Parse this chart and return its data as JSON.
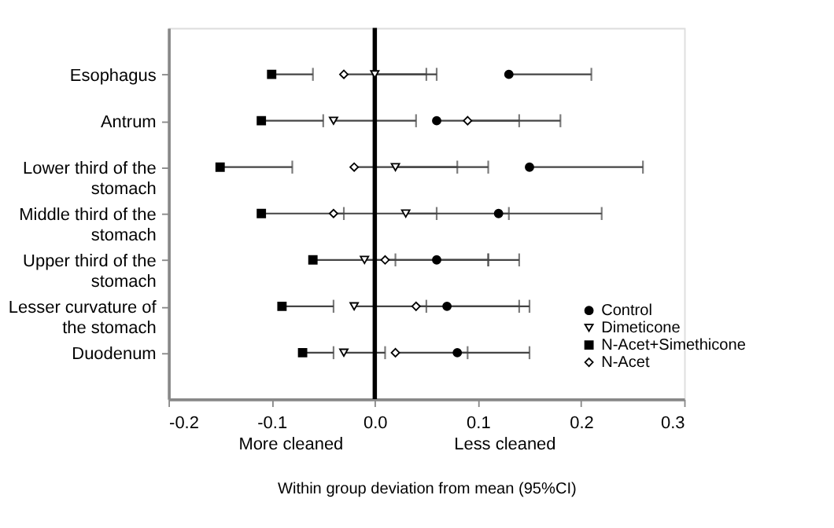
{
  "chart_data": {
    "type": "scatter",
    "orientation": "horizontal",
    "categories": [
      "Esophagus",
      "Antrum",
      "Lower third of the stomach",
      "Middle third of the stomach",
      "Upper third of the stomach",
      "Lesser curvature of the stomach",
      "Duodenum"
    ],
    "series": [
      {
        "name": "Control",
        "color": "#000000",
        "marker": "circle",
        "values": [
          0.13,
          0.06,
          0.15,
          0.12,
          0.06,
          0.07,
          0.08
        ],
        "errors": [
          [
            0.13,
            0.21
          ],
          [
            0.06,
            0.14
          ],
          [
            0.15,
            0.26
          ],
          [
            0.12,
            0.22
          ],
          [
            0.06,
            0.14
          ],
          [
            0.07,
            0.15
          ],
          [
            0.08,
            0.15
          ]
        ]
      },
      {
        "name": "Dimeticone",
        "color": "#000000",
        "marker": "triangle",
        "values": [
          0.0,
          -0.04,
          0.02,
          0.03,
          -0.01,
          -0.02,
          -0.03
        ],
        "errors": [
          [
            0.0,
            0.06
          ],
          [
            -0.04,
            0.04
          ],
          [
            0.02,
            0.11
          ],
          [
            0.03,
            0.13
          ],
          [
            -0.01,
            0.11
          ],
          [
            -0.02,
            0.05
          ],
          [
            -0.03,
            0.01
          ]
        ]
      },
      {
        "name": "N-Acet+Simethicone",
        "color": "#000000",
        "marker": "square",
        "values": [
          -0.1,
          -0.11,
          -0.15,
          -0.11,
          -0.06,
          -0.09,
          -0.07
        ],
        "errors": [
          [
            -0.1,
            -0.06
          ],
          [
            -0.11,
            -0.05
          ],
          [
            -0.15,
            -0.08
          ],
          [
            -0.11,
            -0.03
          ],
          [
            -0.06,
            0.02
          ],
          [
            -0.09,
            -0.04
          ],
          [
            -0.07,
            -0.04
          ]
        ]
      },
      {
        "name": "N-Acet",
        "color": "#000000",
        "marker": "diamond",
        "values": [
          -0.03,
          0.09,
          -0.02,
          -0.04,
          0.01,
          0.04,
          0.02
        ],
        "errors": [
          [
            -0.03,
            0.05
          ],
          [
            0.09,
            0.18
          ],
          [
            -0.02,
            0.08
          ],
          [
            -0.04,
            0.06
          ],
          [
            0.01,
            0.11
          ],
          [
            0.04,
            0.14
          ],
          [
            0.02,
            0.09
          ]
        ]
      }
    ],
    "xlim": [
      -0.2,
      0.3
    ],
    "xticks": [
      {
        "value": -0.2,
        "label": "-0.2"
      },
      {
        "value": -0.1,
        "label": "-0.1"
      },
      {
        "value": 0,
        "label": "0.0"
      },
      {
        "value": 0.1,
        "label": "0.1"
      },
      {
        "value": 0.2,
        "label": "0.2"
      },
      {
        "value": 0.3,
        "label": "0.3"
      }
    ],
    "xlabel": "Within group deviation from mean (95%CI)",
    "annotations": [
      "More cleaned",
      "Less cleaned"
    ],
    "ref_lines": [
      {
        "axis": "x",
        "value": 0,
        "color": "#000000"
      }
    ],
    "legend": "bottom right",
    "grid": false
  }
}
